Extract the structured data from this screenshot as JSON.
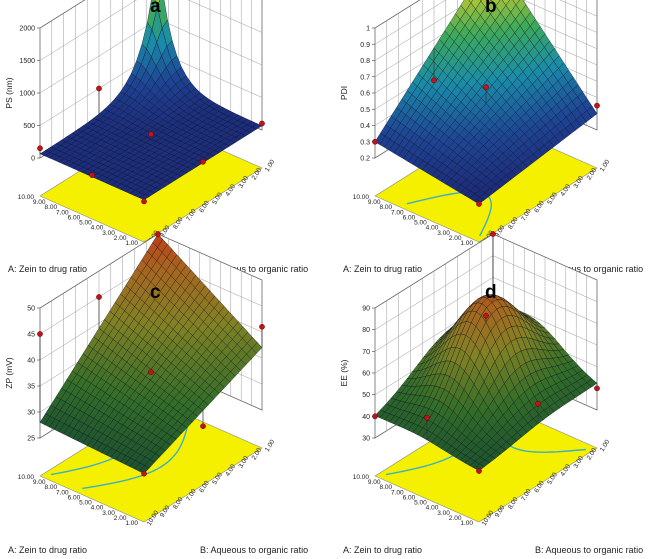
{
  "chart_data": [
    {
      "panel": "a",
      "type": "surface3d",
      "zlabel": "PS (nm)",
      "xlabel": "A: Zein to drug ratio",
      "ylabel": "B: Aqueous to organic ratio",
      "x_ticks": [
        "1.00",
        "2.00",
        "3.00",
        "4.00",
        "5.00",
        "6.00",
        "7.00",
        "8.00",
        "9.00",
        "10.00"
      ],
      "y_ticks": [
        "10.00",
        "9.00",
        "8.00",
        "7.00",
        "6.00",
        "5.00",
        "4.00",
        "3.00",
        "2.00",
        "1.00"
      ],
      "z_ticks": [
        "0",
        "500",
        "1000",
        "1500",
        "2000"
      ],
      "zlim": [
        0,
        2000
      ],
      "corners": {
        "back": 2000,
        "left": 120,
        "right": 120,
        "front": 50
      },
      "design_points": [
        [
          10,
          10,
          2000
        ],
        [
          1,
          10,
          100
        ],
        [
          10,
          1,
          150
        ],
        [
          1,
          1,
          40
        ],
        [
          5.5,
          5.5,
          150
        ],
        [
          10,
          5.5,
          500
        ],
        [
          1,
          5.5,
          80
        ],
        [
          5.5,
          1,
          90
        ]
      ],
      "floor_contours": [],
      "colormap": "blue-green-red"
    },
    {
      "panel": "b",
      "type": "surface3d",
      "zlabel": "PDI",
      "xlabel": "A: Zein to drug ratio",
      "ylabel": "B: Aqueous to organic ratio",
      "x_ticks": [
        "1.00",
        "2.00",
        "3.00",
        "4.00",
        "5.00",
        "6.00",
        "7.00",
        "8.00",
        "9.00",
        "10.00"
      ],
      "y_ticks": [
        "10.00",
        "9.00",
        "8.00",
        "7.00",
        "6.00",
        "5.00",
        "4.00",
        "3.00",
        "2.00",
        "1.00"
      ],
      "z_ticks": [
        "0.2",
        "0.3",
        "0.4",
        "0.5",
        "0.6",
        "0.7",
        "0.8",
        "0.9",
        "1"
      ],
      "zlim": [
        0.2,
        1.0
      ],
      "corners": {
        "back": 1.0,
        "left": 0.3,
        "right": 0.3,
        "front": 0.2
      },
      "design_points": [
        [
          10,
          10,
          1.0
        ],
        [
          1,
          10,
          0.35
        ],
        [
          10,
          1,
          0.3
        ],
        [
          1,
          1,
          0.2
        ],
        [
          5.5,
          5.5,
          0.55
        ],
        [
          10,
          5.5,
          0.45
        ]
      ],
      "floor_contours": [
        {
          "type": "arc",
          "level": 0.3
        }
      ],
      "colormap": "blue-green-red"
    },
    {
      "panel": "c",
      "type": "surface3d",
      "zlabel": "ZP (mV)",
      "xlabel": "A: Zein to drug ratio",
      "ylabel": "B: Aqueous to organic ratio",
      "x_ticks": [
        "1.00",
        "2.00",
        "3.00",
        "4.00",
        "5.00",
        "6.00",
        "7.00",
        "8.00",
        "9.00",
        "10.00"
      ],
      "y_ticks": [
        "10.00",
        "9.00",
        "8.00",
        "7.00",
        "6.00",
        "5.00",
        "4.00",
        "3.00",
        "2.00",
        "1.00"
      ],
      "z_ticks": [
        "25",
        "30",
        "35",
        "40",
        "45",
        "50"
      ],
      "zlim": [
        25,
        50
      ],
      "corners": {
        "back": 50,
        "left": 28,
        "right": 37,
        "front": 27
      },
      "design_points": [
        [
          10,
          10,
          50
        ],
        [
          10,
          1,
          45
        ],
        [
          1,
          10,
          41
        ],
        [
          1,
          1,
          27
        ],
        [
          5.5,
          5.5,
          35
        ],
        [
          10,
          5.5,
          45
        ],
        [
          1,
          5.5,
          29
        ]
      ],
      "floor_contours": [
        {
          "type": "arc-left"
        },
        {
          "type": "arc-mid"
        }
      ],
      "colormap": "green-red"
    },
    {
      "panel": "d",
      "type": "surface3d",
      "zlabel": "EE (%)",
      "xlabel": "A: Zein to drug ratio",
      "ylabel": "B: Aqueous to organic ratio",
      "x_ticks": [
        "1.00",
        "2.00",
        "3.00",
        "4.00",
        "5.00",
        "6.00",
        "7.00",
        "8.00",
        "9.00",
        "10.00"
      ],
      "y_ticks": [
        "10.00",
        "9.00",
        "8.00",
        "7.00",
        "6.00",
        "5.00",
        "4.00",
        "3.00",
        "2.00",
        "1.00"
      ],
      "z_ticks": [
        "30",
        "40",
        "50",
        "60",
        "70",
        "80",
        "90"
      ],
      "zlim": [
        30,
        90
      ],
      "corners": {
        "back": 58,
        "left": 40,
        "right": 42,
        "front": 36
      },
      "peak": 82,
      "design_points": [
        [
          10,
          10,
          90
        ],
        [
          5.5,
          5.5,
          80
        ],
        [
          1,
          10,
          40
        ],
        [
          10,
          1,
          40
        ],
        [
          1,
          1,
          36
        ],
        [
          5.5,
          1,
          50
        ],
        [
          1,
          5.5,
          50
        ]
      ],
      "floor_contours": [
        {
          "type": "arc-left"
        },
        {
          "type": "arc-right"
        }
      ],
      "colormap": "green-red"
    }
  ]
}
